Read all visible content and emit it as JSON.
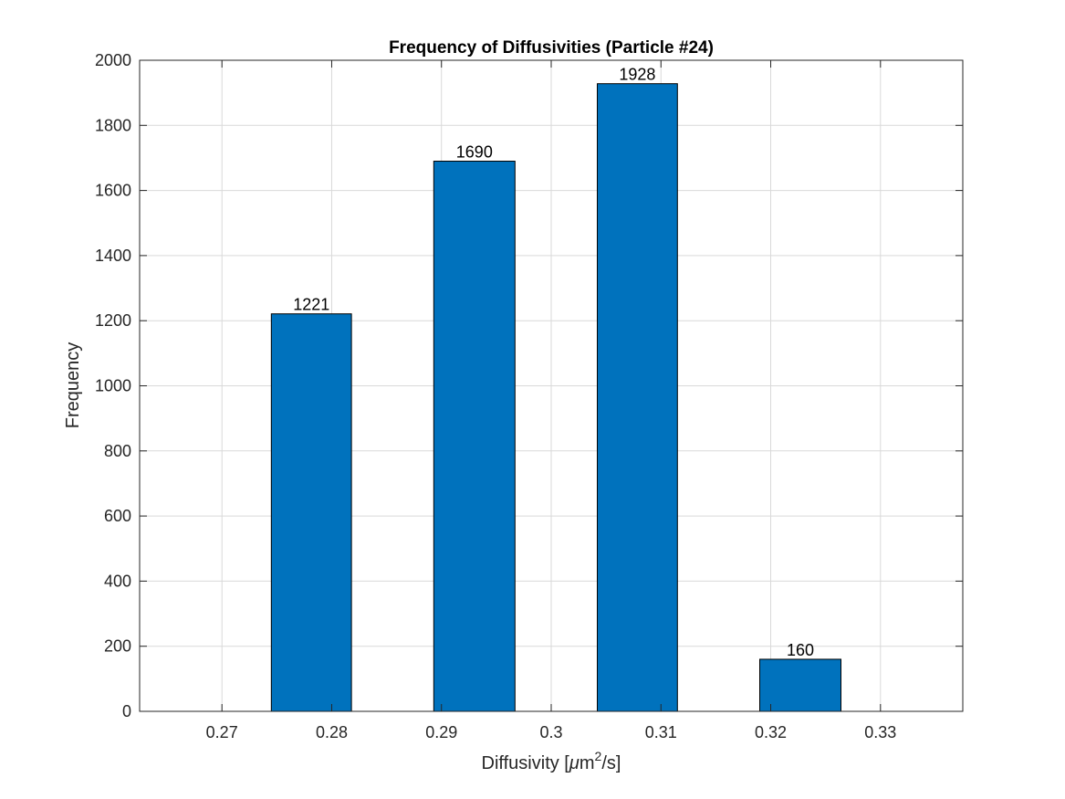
{
  "chart_data": {
    "type": "bar",
    "title": "Frequency of Diffusivities (Particle #24)",
    "xlabel": {
      "prefix": "Diffusivity [",
      "mu": "μ",
      "unit_base": "m",
      "unit_exp": "2",
      "suffix": "/s]"
    },
    "ylabel": "Frequency",
    "xlim": [
      0.2625,
      0.3375
    ],
    "ylim": [
      0,
      2000
    ],
    "grid": true,
    "x_ticks": [
      0.27,
      0.28,
      0.29,
      0.3,
      0.31,
      0.32,
      0.33
    ],
    "x_tick_labels": [
      "0.27",
      "0.28",
      "0.29",
      "0.3",
      "0.31",
      "0.32",
      "0.33"
    ],
    "y_ticks": [
      0,
      200,
      400,
      600,
      800,
      1000,
      1200,
      1400,
      1600,
      1800,
      2000
    ],
    "y_tick_labels": [
      "0",
      "200",
      "400",
      "600",
      "800",
      "1000",
      "1200",
      "1400",
      "1600",
      "1800",
      "2000"
    ],
    "bars": [
      {
        "x_start": 0.2745,
        "x_end": 0.2818,
        "value": 1221,
        "label": "1221"
      },
      {
        "x_start": 0.2893,
        "x_end": 0.2967,
        "value": 1690,
        "label": "1690"
      },
      {
        "x_start": 0.3042,
        "x_end": 0.3115,
        "value": 1928,
        "label": "1928"
      },
      {
        "x_start": 0.319,
        "x_end": 0.3264,
        "value": 160,
        "label": "160"
      }
    ],
    "colors": {
      "bar": "#0072BD",
      "edge": "#000000",
      "grid": "#d9d9d9",
      "axis": "#262626"
    }
  }
}
